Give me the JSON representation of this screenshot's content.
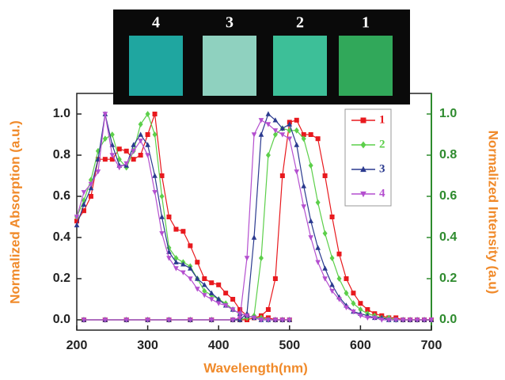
{
  "chart_data": {
    "type": "line",
    "x_label": "Wavelength(nm)",
    "y_label": "Normalized Absorption (a.u.)",
    "y2_label": "Normalized Intensity (a.u)",
    "xlim": [
      200,
      700
    ],
    "ylim": [
      -0.05,
      1.1
    ],
    "y2lim": [
      -0.05,
      1.1
    ],
    "xticks": [
      200,
      300,
      400,
      500,
      600,
      700
    ],
    "yticks": [
      {
        "value": 0,
        "label": "0.0"
      },
      {
        "value": 0.2,
        "label": "0.2"
      },
      {
        "value": 0.4,
        "label": "0.4"
      },
      {
        "value": 0.6,
        "label": "0.6"
      },
      {
        "value": 0.8,
        "label": "0.8"
      },
      {
        "value": 1,
        "label": "1.0"
      }
    ],
    "y2ticks": [
      {
        "value": 0,
        "label": "0.0"
      },
      {
        "value": 0.2,
        "label": "0.2"
      },
      {
        "value": 0.4,
        "label": "0.4"
      },
      {
        "value": 0.6,
        "label": "0.6"
      },
      {
        "value": 0.8,
        "label": "0.8"
      },
      {
        "value": 1,
        "label": "1.0"
      }
    ],
    "legend": "upper right",
    "inset_labels": [
      "4",
      "3",
      "2",
      "1"
    ],
    "absorption_x": [
      200,
      210,
      220,
      230,
      240,
      250,
      260,
      270,
      280,
      290,
      300,
      310,
      320,
      330,
      340,
      350,
      360,
      370,
      380,
      390,
      400,
      410,
      420,
      430,
      440,
      450,
      460,
      470,
      480,
      490,
      500
    ],
    "emission_x": [
      210,
      240,
      270,
      300,
      330,
      360,
      390,
      420,
      430,
      440,
      450,
      460,
      470,
      480,
      490,
      500,
      510,
      520,
      530,
      540,
      550,
      560,
      570,
      580,
      590,
      600,
      610,
      620,
      630,
      640,
      650,
      660,
      670,
      680,
      690,
      700
    ],
    "series": [
      {
        "name": "1",
        "color": "#e8191e",
        "marker": "square",
        "absorption": [
          0.48,
          0.53,
          0.6,
          0.78,
          0.78,
          0.78,
          0.83,
          0.82,
          0.78,
          0.8,
          0.9,
          1.0,
          0.7,
          0.5,
          0.44,
          0.43,
          0.36,
          0.28,
          0.2,
          0.18,
          0.17,
          0.13,
          0.1,
          0.05,
          0.02,
          0.01,
          0.01,
          0.01,
          0,
          0,
          0
        ],
        "emission": [
          0,
          0,
          0,
          0,
          0,
          0,
          0,
          0,
          0,
          0,
          0.01,
          0.02,
          0.05,
          0.2,
          0.7,
          0.96,
          0.97,
          0.9,
          0.9,
          0.88,
          0.7,
          0.5,
          0.32,
          0.2,
          0.13,
          0.08,
          0.05,
          0.03,
          0.02,
          0.01,
          0.01,
          0,
          0,
          0,
          0,
          0
        ]
      },
      {
        "name": "2",
        "color": "#5ccf4a",
        "marker": "diamond",
        "absorption": [
          0.5,
          0.58,
          0.68,
          0.82,
          0.88,
          0.9,
          0.78,
          0.74,
          0.82,
          0.95,
          1.0,
          0.9,
          0.6,
          0.35,
          0.3,
          0.28,
          0.26,
          0.2,
          0.14,
          0.12,
          0.1,
          0.08,
          0.05,
          0.03,
          0.02,
          0.01,
          0.01,
          0,
          0,
          0,
          0
        ],
        "emission": [
          0,
          0,
          0,
          0,
          0,
          0,
          0,
          0,
          0,
          0.01,
          0.02,
          0.3,
          0.8,
          0.9,
          0.93,
          0.92,
          0.92,
          0.88,
          0.75,
          0.57,
          0.42,
          0.3,
          0.2,
          0.13,
          0.08,
          0.05,
          0.03,
          0.02,
          0.01,
          0.01,
          0,
          0,
          0,
          0,
          0,
          0
        ]
      },
      {
        "name": "3",
        "color": "#2b3a8f",
        "marker": "triangle",
        "absorption": [
          0.46,
          0.56,
          0.64,
          0.78,
          1.0,
          0.85,
          0.75,
          0.75,
          0.85,
          0.9,
          0.85,
          0.7,
          0.5,
          0.33,
          0.28,
          0.27,
          0.25,
          0.2,
          0.17,
          0.13,
          0.1,
          0.07,
          0.05,
          0.03,
          0.02,
          0.01,
          0,
          0,
          0,
          0,
          0
        ],
        "emission": [
          0,
          0,
          0,
          0,
          0,
          0,
          0,
          0,
          0,
          0.03,
          0.4,
          0.9,
          1.0,
          0.97,
          0.93,
          0.95,
          0.85,
          0.65,
          0.48,
          0.35,
          0.25,
          0.17,
          0.11,
          0.07,
          0.04,
          0.03,
          0.02,
          0.01,
          0.01,
          0,
          0,
          0,
          0,
          0,
          0,
          0
        ]
      },
      {
        "name": "4",
        "color": "#b44fcf",
        "marker": "triangle-down",
        "absorption": [
          0.5,
          0.62,
          0.66,
          0.72,
          1.0,
          0.8,
          0.74,
          0.76,
          0.82,
          0.87,
          0.8,
          0.62,
          0.42,
          0.3,
          0.25,
          0.23,
          0.2,
          0.15,
          0.12,
          0.1,
          0.08,
          0.07,
          0.05,
          0.03,
          0.02,
          0.01,
          0,
          0,
          0,
          0,
          0
        ],
        "emission": [
          0,
          0,
          0,
          0,
          0,
          0,
          0,
          0,
          0.01,
          0.3,
          0.9,
          0.97,
          0.95,
          0.92,
          0.9,
          0.88,
          0.72,
          0.55,
          0.4,
          0.28,
          0.2,
          0.14,
          0.1,
          0.06,
          0.04,
          0.02,
          0.01,
          0.01,
          0,
          0,
          0,
          0,
          0,
          0,
          0,
          0
        ]
      }
    ]
  }
}
